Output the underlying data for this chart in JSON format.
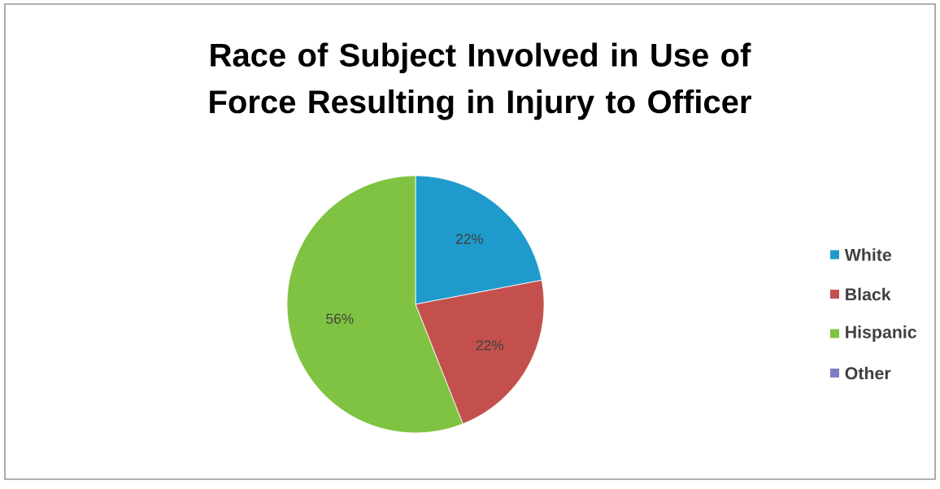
{
  "chart_data": {
    "type": "pie",
    "title": "Race of Subject Involved in Use of Force Resulting in Injury to Officer",
    "categories": [
      "White",
      "Black",
      "Hispanic",
      "Other"
    ],
    "values": [
      22,
      22,
      56,
      0
    ],
    "colors": [
      "#1e9bcc",
      "#c4504e",
      "#80c342",
      "#7b80c4"
    ],
    "value_labels": [
      "22%",
      "22%",
      "56%",
      null
    ],
    "legend": "right"
  }
}
